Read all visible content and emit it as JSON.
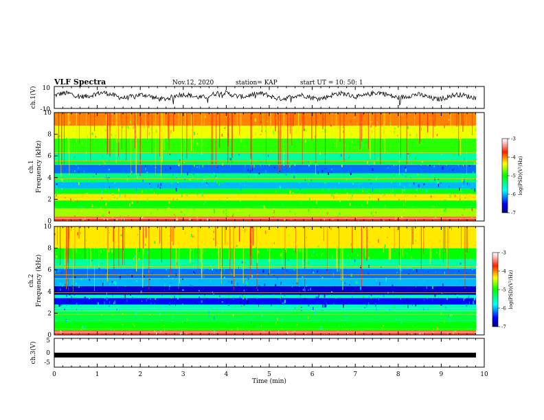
{
  "header": {
    "title": "VLF Spectra",
    "date": "Nov.12, 2020",
    "station": "station= KAP",
    "start": "start  UT  =   10: 50: 1"
  },
  "chart_data": [
    {
      "type": "line",
      "panel": "waveform-ch1",
      "ylabel": "ch.1(V)",
      "ylim": [
        -10,
        10
      ],
      "yticks": [
        "10",
        "-10"
      ],
      "xlim": [
        0,
        10
      ],
      "approx_mean_v": 1.5,
      "line_color": "#000000"
    },
    {
      "type": "heatmap",
      "panel": "spectrogram-ch1",
      "ylabel": "ch.1",
      "ylabel2": "Frequency (kHz)",
      "ylim": [
        0,
        10
      ],
      "yticks": [
        "0",
        "2",
        "4",
        "6",
        "8",
        "10"
      ],
      "xlim": [
        0,
        9.8
      ],
      "colorbar": {
        "label": "log(PSD)(V²/Hz)",
        "range": [
          -7,
          -3
        ],
        "ticks": [
          "-3",
          "-4",
          "-5",
          "-6",
          "-7"
        ]
      },
      "bands": [
        {
          "from": 0,
          "to": 0.4,
          "level": -3.8
        },
        {
          "from": 0.4,
          "to": 1.2,
          "level": -4.6
        },
        {
          "from": 1.2,
          "to": 1.9,
          "level": -5.0
        },
        {
          "from": 1.9,
          "to": 2.5,
          "level": -4.3
        },
        {
          "from": 2.5,
          "to": 3.0,
          "level": -5.1
        },
        {
          "from": 3.0,
          "to": 3.6,
          "level": -6.0
        },
        {
          "from": 3.6,
          "to": 3.9,
          "level": -5.3
        },
        {
          "from": 3.9,
          "to": 4.4,
          "level": -5.4
        },
        {
          "from": 4.4,
          "to": 5.2,
          "level": -6.2
        },
        {
          "from": 5.2,
          "to": 5.6,
          "level": -5.2
        },
        {
          "from": 5.6,
          "to": 6.3,
          "level": -5.5
        },
        {
          "from": 6.3,
          "to": 7.6,
          "level": -4.9
        },
        {
          "from": 7.6,
          "to": 8.8,
          "level": -4.4
        },
        {
          "from": 8.8,
          "to": 10.0,
          "level": -4.0
        }
      ]
    },
    {
      "type": "heatmap",
      "panel": "spectrogram-ch2",
      "ylabel": "ch.2",
      "ylabel2": "Frequency (kHz)",
      "ylim": [
        0,
        10
      ],
      "yticks": [
        "0",
        "2",
        "4",
        "6",
        "8",
        "10"
      ],
      "xlim": [
        0,
        9.8
      ],
      "colorbar": {
        "label": "log(PSD)(V²/Hz)",
        "range": [
          -7,
          -3
        ],
        "ticks": [
          "-3",
          "-4",
          "-5",
          "-6",
          "-7"
        ]
      },
      "bands": [
        {
          "from": 0,
          "to": 0.4,
          "level": -3.6
        },
        {
          "from": 0.4,
          "to": 1.2,
          "level": -5.0
        },
        {
          "from": 1.2,
          "to": 2.2,
          "level": -5.2
        },
        {
          "from": 2.2,
          "to": 2.8,
          "level": -5.6
        },
        {
          "from": 2.8,
          "to": 3.4,
          "level": -6.5
        },
        {
          "from": 3.4,
          "to": 3.7,
          "level": -5.6
        },
        {
          "from": 3.7,
          "to": 4.5,
          "level": -6.7
        },
        {
          "from": 4.5,
          "to": 5.2,
          "level": -6.0
        },
        {
          "from": 5.2,
          "to": 6.1,
          "level": -6.2
        },
        {
          "from": 6.1,
          "to": 7.0,
          "level": -5.5
        },
        {
          "from": 7.0,
          "to": 8.0,
          "level": -5.0
        },
        {
          "from": 8.0,
          "to": 10.0,
          "level": -4.3
        }
      ]
    },
    {
      "type": "line",
      "panel": "waveform-ch3",
      "ylabel": "ch.3(V)",
      "ylim": [
        -5,
        5
      ],
      "yticks": [
        "5",
        "0",
        "-5"
      ],
      "xlim": [
        0,
        10
      ],
      "value_v": -0.8,
      "line_color": "#000000"
    }
  ],
  "xaxis": {
    "label": "Time  (min)",
    "ticks": [
      "0",
      "1",
      "2",
      "3",
      "4",
      "5",
      "6",
      "7",
      "8",
      "9",
      "10"
    ]
  }
}
